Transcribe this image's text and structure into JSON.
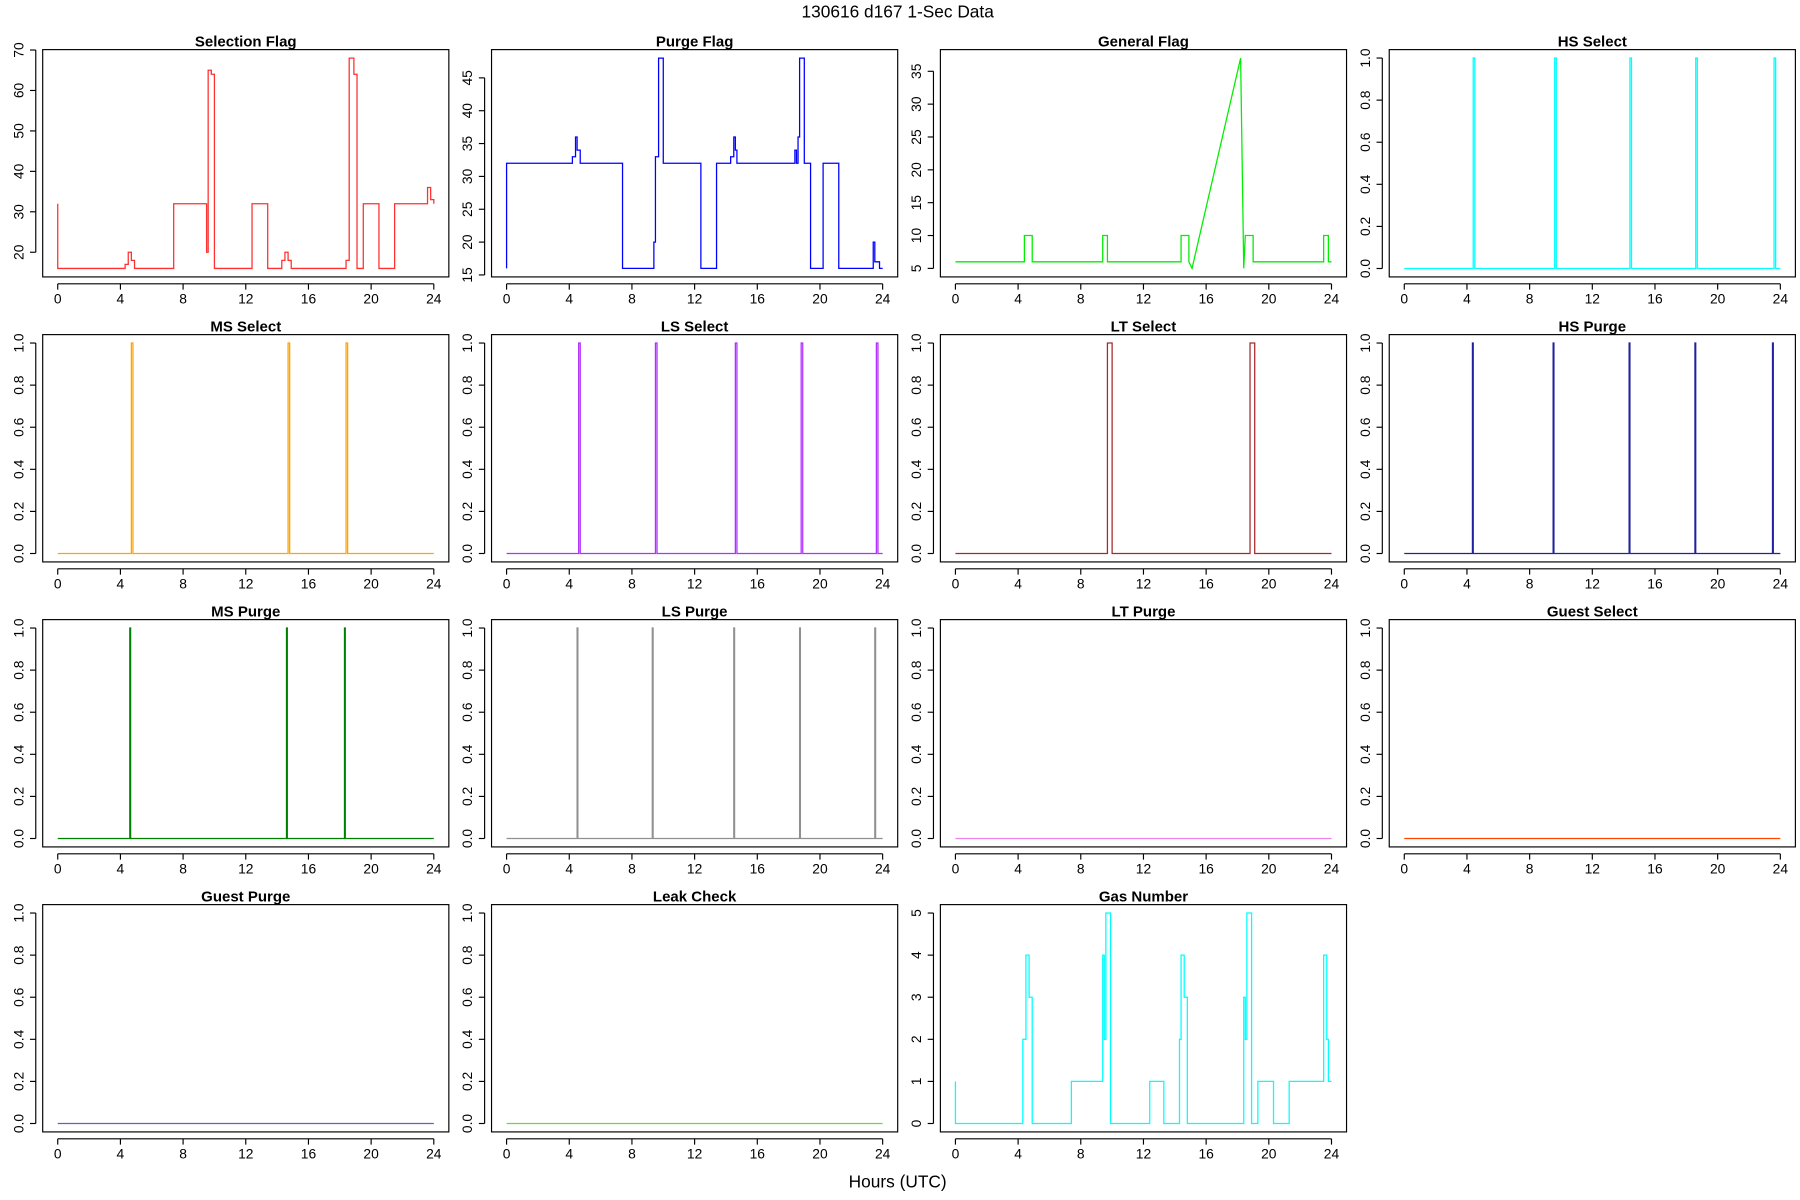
{
  "title": "130616   d167   1-Sec Data",
  "x_label": "Hours (UTC)",
  "chart_data": [
    {
      "type": "line",
      "title": "Selection Flag",
      "color": "#ff3030",
      "xlim": [
        -0.96,
        24.96
      ],
      "xticks": [
        0,
        4,
        8,
        12,
        16,
        20,
        24
      ],
      "ylim": [
        13.9,
        70.1
      ],
      "yticks": [
        20,
        30,
        40,
        50,
        60,
        70
      ],
      "x": [
        0,
        0,
        4.3,
        4.3,
        4.5,
        4.5,
        4.7,
        4.7,
        4.9,
        4.9,
        7.4,
        7.4,
        9.5,
        9.5,
        9.6,
        9.6,
        9.8,
        9.8,
        10,
        10,
        12.4,
        12.4,
        13.4,
        13.4,
        14.3,
        14.3,
        14.5,
        14.5,
        14.7,
        14.7,
        14.9,
        14.9,
        18.4,
        18.4,
        18.6,
        18.6,
        18.9,
        18.9,
        19.1,
        19.1,
        19.5,
        19.5,
        20.5,
        20.5,
        21.5,
        21.5,
        23.6,
        23.6,
        23.8,
        23.8,
        24,
        24
      ],
      "values": [
        32,
        16,
        16,
        17,
        17,
        20,
        20,
        18,
        18,
        16,
        16,
        32,
        32,
        20,
        20,
        65,
        65,
        64,
        64,
        16,
        16,
        32,
        32,
        16,
        16,
        18,
        18,
        20,
        20,
        18,
        18,
        16,
        16,
        18,
        18,
        68,
        68,
        64,
        64,
        16,
        16,
        32,
        32,
        16,
        16,
        32,
        32,
        36,
        36,
        33,
        33,
        32
      ]
    },
    {
      "type": "line",
      "title": "Purge Flag",
      "color": "#0000ff",
      "xlim": [
        -0.96,
        24.96
      ],
      "xticks": [
        0,
        4,
        8,
        12,
        16,
        20,
        24
      ],
      "ylim": [
        14.7,
        49.3
      ],
      "yticks": [
        15,
        20,
        25,
        30,
        35,
        40,
        45
      ],
      "x": [
        0,
        0,
        4.2,
        4.2,
        4.4,
        4.4,
        4.5,
        4.5,
        4.7,
        4.7,
        7.4,
        7.4,
        9.4,
        9.4,
        9.5,
        9.5,
        9.7,
        9.7,
        10,
        10,
        12.4,
        12.4,
        13.4,
        13.4,
        14.3,
        14.3,
        14.5,
        14.5,
        14.6,
        14.6,
        14.7,
        14.7,
        18.4,
        18.4,
        18.5,
        18.5,
        18.6,
        18.6,
        18.7,
        18.7,
        19,
        19,
        19.4,
        19.4,
        20.2,
        20.2,
        21.2,
        21.2,
        23.4,
        23.4,
        23.5,
        23.5,
        23.8,
        23.8,
        24
      ],
      "values": [
        16,
        32,
        32,
        33,
        33,
        36,
        36,
        34,
        34,
        32,
        32,
        16,
        16,
        20,
        20,
        33,
        33,
        48,
        48,
        32,
        32,
        16,
        16,
        32,
        32,
        33,
        33,
        36,
        36,
        34,
        34,
        32,
        32,
        34,
        34,
        32,
        32,
        36,
        36,
        48,
        48,
        32,
        32,
        16,
        16,
        32,
        32,
        16,
        16,
        20,
        20,
        17,
        17,
        16,
        16
      ]
    },
    {
      "type": "line",
      "title": "General Flag",
      "color": "#00ee00",
      "xlim": [
        -0.96,
        24.96
      ],
      "xticks": [
        0,
        4,
        8,
        12,
        16,
        20,
        24
      ],
      "ylim": [
        3.7,
        38.3
      ],
      "yticks": [
        5,
        10,
        15,
        20,
        25,
        30,
        35
      ],
      "x": [
        0,
        4.4,
        4.4,
        4.9,
        4.9,
        9.4,
        9.4,
        9.7,
        9.7,
        14.4,
        14.4,
        14.9,
        14.9,
        15.1,
        18.2,
        18.4,
        18.5,
        19,
        19,
        23.5,
        23.5,
        23.8,
        23.8,
        24
      ],
      "values": [
        6,
        6,
        10,
        10,
        6,
        6,
        10,
        10,
        6,
        6,
        10,
        10,
        6,
        5,
        37,
        5,
        10,
        10,
        6,
        6,
        10,
        10,
        6,
        6
      ]
    },
    {
      "type": "line",
      "title": "HS Select",
      "color": "#00ffff",
      "xlim": [
        -0.96,
        24.96
      ],
      "xticks": [
        0,
        4,
        8,
        12,
        16,
        20,
        24
      ],
      "ylim": [
        -0.04,
        1.04
      ],
      "yticks": [
        {
          "value": 0,
          "label": "0.0"
        },
        {
          "value": 0.2,
          "label": "0.2"
        },
        {
          "value": 0.4,
          "label": "0.4"
        },
        {
          "value": 0.6,
          "label": "0.6"
        },
        {
          "value": 0.8,
          "label": "0.8"
        },
        {
          "value": 1,
          "label": "1.0"
        }
      ],
      "x": [
        0,
        4.4,
        4.4,
        4.5,
        4.5,
        9.6,
        9.6,
        9.7,
        9.7,
        14.4,
        14.4,
        14.5,
        14.5,
        18.6,
        18.6,
        18.7,
        18.7,
        23.6,
        23.6,
        23.7,
        23.7,
        24
      ],
      "values": [
        0,
        0,
        1,
        1,
        0,
        0,
        1,
        1,
        0,
        0,
        1,
        1,
        0,
        0,
        1,
        1,
        0,
        0,
        1,
        1,
        0,
        0
      ]
    },
    {
      "type": "line",
      "title": "MS Select",
      "color": "#ffa500",
      "xlim": [
        -0.96,
        24.96
      ],
      "xticks": [
        0,
        4,
        8,
        12,
        16,
        20,
        24
      ],
      "ylim": [
        -0.04,
        1.04
      ],
      "yticks": [
        {
          "value": 0,
          "label": "0.0"
        },
        {
          "value": 0.2,
          "label": "0.2"
        },
        {
          "value": 0.4,
          "label": "0.4"
        },
        {
          "value": 0.6,
          "label": "0.6"
        },
        {
          "value": 0.8,
          "label": "0.8"
        },
        {
          "value": 1,
          "label": "1.0"
        }
      ],
      "x": [
        0,
        4.7,
        4.7,
        4.8,
        4.8,
        14.7,
        14.7,
        14.8,
        14.8,
        18.4,
        18.4,
        18.5,
        18.5,
        24
      ],
      "values": [
        0,
        0,
        1,
        1,
        0,
        0,
        1,
        1,
        0,
        0,
        1,
        1,
        0,
        0
      ]
    },
    {
      "type": "line",
      "title": "LS Select",
      "color": "#b030ff",
      "xlim": [
        -0.96,
        24.96
      ],
      "xticks": [
        0,
        4,
        8,
        12,
        16,
        20,
        24
      ],
      "ylim": [
        -0.04,
        1.04
      ],
      "yticks": [
        {
          "value": 0,
          "label": "0.0"
        },
        {
          "value": 0.2,
          "label": "0.2"
        },
        {
          "value": 0.4,
          "label": "0.4"
        },
        {
          "value": 0.6,
          "label": "0.6"
        },
        {
          "value": 0.8,
          "label": "0.8"
        },
        {
          "value": 1,
          "label": "1.0"
        }
      ],
      "x": [
        0,
        4.6,
        4.6,
        4.7,
        4.7,
        9.5,
        9.5,
        9.6,
        9.6,
        14.6,
        14.6,
        14.7,
        14.7,
        18.8,
        18.8,
        18.9,
        18.9,
        23.6,
        23.6,
        23.7,
        23.7,
        24
      ],
      "values": [
        0,
        0,
        1,
        1,
        0,
        0,
        1,
        1,
        0,
        0,
        1,
        1,
        0,
        0,
        1,
        1,
        0,
        0,
        1,
        1,
        0,
        0
      ]
    },
    {
      "type": "line",
      "title": "LT Select",
      "color": "#a52a2a",
      "xlim": [
        -0.96,
        24.96
      ],
      "xticks": [
        0,
        4,
        8,
        12,
        16,
        20,
        24
      ],
      "ylim": [
        -0.04,
        1.04
      ],
      "yticks": [
        {
          "value": 0,
          "label": "0.0"
        },
        {
          "value": 0.2,
          "label": "0.2"
        },
        {
          "value": 0.4,
          "label": "0.4"
        },
        {
          "value": 0.6,
          "label": "0.6"
        },
        {
          "value": 0.8,
          "label": "0.8"
        },
        {
          "value": 1,
          "label": "1.0"
        }
      ],
      "x": [
        0,
        9.7,
        9.7,
        10,
        10,
        18.8,
        18.8,
        19.1,
        19.1,
        24
      ],
      "values": [
        0,
        0,
        1,
        1,
        0,
        0,
        1,
        1,
        0,
        0
      ]
    },
    {
      "type": "line",
      "title": "HS Purge",
      "color": "#2020a0",
      "xlim": [
        -0.96,
        24.96
      ],
      "xticks": [
        0,
        4,
        8,
        12,
        16,
        20,
        24
      ],
      "ylim": [
        -0.04,
        1.04
      ],
      "yticks": [
        {
          "value": 0,
          "label": "0.0"
        },
        {
          "value": 0.2,
          "label": "0.2"
        },
        {
          "value": 0.4,
          "label": "0.4"
        },
        {
          "value": 0.6,
          "label": "0.6"
        },
        {
          "value": 0.8,
          "label": "0.8"
        },
        {
          "value": 1,
          "label": "1.0"
        }
      ],
      "x": [
        0,
        4.35,
        4.35,
        4.4,
        4.4,
        9.5,
        9.5,
        9.55,
        9.55,
        14.35,
        14.35,
        14.4,
        14.4,
        18.55,
        18.55,
        18.6,
        18.6,
        23.5,
        23.5,
        23.55,
        23.55,
        24
      ],
      "values": [
        0,
        0,
        1,
        1,
        0,
        0,
        1,
        1,
        0,
        0,
        1,
        1,
        0,
        0,
        1,
        1,
        0,
        0,
        1,
        1,
        0,
        0
      ]
    },
    {
      "type": "line",
      "title": "MS Purge",
      "color": "#008000",
      "xlim": [
        -0.96,
        24.96
      ],
      "xticks": [
        0,
        4,
        8,
        12,
        16,
        20,
        24
      ],
      "ylim": [
        -0.04,
        1.04
      ],
      "yticks": [
        {
          "value": 0,
          "label": "0.0"
        },
        {
          "value": 0.2,
          "label": "0.2"
        },
        {
          "value": 0.4,
          "label": "0.4"
        },
        {
          "value": 0.6,
          "label": "0.6"
        },
        {
          "value": 0.8,
          "label": "0.8"
        },
        {
          "value": 1,
          "label": "1.0"
        }
      ],
      "x": [
        0,
        4.6,
        4.6,
        4.65,
        4.65,
        14.6,
        14.6,
        14.65,
        14.65,
        18.3,
        18.3,
        18.35,
        18.35,
        24
      ],
      "values": [
        0,
        0,
        1,
        1,
        0,
        0,
        1,
        1,
        0,
        0,
        1,
        1,
        0,
        0
      ]
    },
    {
      "type": "line",
      "title": "LS Purge",
      "color": "#909090",
      "xlim": [
        -0.96,
        24.96
      ],
      "xticks": [
        0,
        4,
        8,
        12,
        16,
        20,
        24
      ],
      "ylim": [
        -0.04,
        1.04
      ],
      "yticks": [
        {
          "value": 0,
          "label": "0.0"
        },
        {
          "value": 0.2,
          "label": "0.2"
        },
        {
          "value": 0.4,
          "label": "0.4"
        },
        {
          "value": 0.6,
          "label": "0.6"
        },
        {
          "value": 0.8,
          "label": "0.8"
        },
        {
          "value": 1,
          "label": "1.0"
        }
      ],
      "x": [
        0,
        4.5,
        4.5,
        4.55,
        4.55,
        9.3,
        9.3,
        9.35,
        9.35,
        14.5,
        14.5,
        14.55,
        14.55,
        18.7,
        18.7,
        18.75,
        18.75,
        23.5,
        23.5,
        23.55,
        23.55,
        24
      ],
      "values": [
        0,
        0,
        1,
        1,
        0,
        0,
        1,
        1,
        0,
        0,
        1,
        1,
        0,
        0,
        1,
        1,
        0,
        0,
        1,
        1,
        0,
        0
      ]
    },
    {
      "type": "line",
      "title": "LT Purge",
      "color": "#ee82ee",
      "xlim": [
        -0.96,
        24.96
      ],
      "xticks": [
        0,
        4,
        8,
        12,
        16,
        20,
        24
      ],
      "ylim": [
        -0.04,
        1.04
      ],
      "yticks": [
        {
          "value": 0,
          "label": "0.0"
        },
        {
          "value": 0.2,
          "label": "0.2"
        },
        {
          "value": 0.4,
          "label": "0.4"
        },
        {
          "value": 0.6,
          "label": "0.6"
        },
        {
          "value": 0.8,
          "label": "0.8"
        },
        {
          "value": 1,
          "label": "1.0"
        }
      ],
      "x": [
        0,
        24
      ],
      "values": [
        0,
        0
      ]
    },
    {
      "type": "line",
      "title": "Guest Select",
      "color": "#ff4500",
      "xlim": [
        -0.96,
        24.96
      ],
      "xticks": [
        0,
        4,
        8,
        12,
        16,
        20,
        24
      ],
      "ylim": [
        -0.04,
        1.04
      ],
      "yticks": [
        {
          "value": 0,
          "label": "0.0"
        },
        {
          "value": 0.2,
          "label": "0.2"
        },
        {
          "value": 0.4,
          "label": "0.4"
        },
        {
          "value": 0.6,
          "label": "0.6"
        },
        {
          "value": 0.8,
          "label": "0.8"
        },
        {
          "value": 1,
          "label": "1.0"
        }
      ],
      "x": [
        0,
        24
      ],
      "values": [
        0,
        0
      ]
    },
    {
      "type": "line",
      "title": "Guest Purge",
      "color": "#6a5acd",
      "xlim": [
        -0.96,
        24.96
      ],
      "xticks": [
        0,
        4,
        8,
        12,
        16,
        20,
        24
      ],
      "ylim": [
        -0.04,
        1.04
      ],
      "yticks": [
        {
          "value": 0,
          "label": "0.0"
        },
        {
          "value": 0.2,
          "label": "0.2"
        },
        {
          "value": 0.4,
          "label": "0.4"
        },
        {
          "value": 0.6,
          "label": "0.6"
        },
        {
          "value": 0.8,
          "label": "0.8"
        },
        {
          "value": 1,
          "label": "1.0"
        }
      ],
      "x": [
        0,
        24
      ],
      "values": [
        0,
        0
      ]
    },
    {
      "type": "line",
      "title": "Leak Check",
      "color": "#66dd33",
      "xlim": [
        -0.96,
        24.96
      ],
      "xticks": [
        0,
        4,
        8,
        12,
        16,
        20,
        24
      ],
      "ylim": [
        -0.04,
        1.04
      ],
      "yticks": [
        {
          "value": 0,
          "label": "0.0"
        },
        {
          "value": 0.2,
          "label": "0.2"
        },
        {
          "value": 0.4,
          "label": "0.4"
        },
        {
          "value": 0.6,
          "label": "0.6"
        },
        {
          "value": 0.8,
          "label": "0.8"
        },
        {
          "value": 1,
          "label": "1.0"
        }
      ],
      "x": [
        0,
        24
      ],
      "values": [
        0,
        0
      ]
    },
    {
      "type": "line",
      "title": "Gas Number",
      "color": "#00ffff",
      "xlim": [
        -0.96,
        24.96
      ],
      "xticks": [
        0,
        4,
        8,
        12,
        16,
        20,
        24
      ],
      "ylim": [
        -0.2,
        5.2
      ],
      "yticks": [
        0,
        1,
        2,
        3,
        4,
        5
      ],
      "x": [
        0,
        0,
        4.3,
        4.3,
        4.5,
        4.5,
        4.7,
        4.7,
        4.9,
        4.9,
        7.4,
        7.4,
        9.4,
        9.4,
        9.5,
        9.5,
        9.6,
        9.6,
        9.9,
        9.9,
        12.4,
        12.4,
        13.3,
        13.3,
        14.3,
        14.3,
        14.4,
        14.4,
        14.6,
        14.6,
        14.8,
        14.8,
        18.4,
        18.4,
        18.5,
        18.5,
        18.6,
        18.6,
        18.9,
        18.9,
        19.3,
        19.3,
        20.3,
        20.3,
        21.3,
        21.3,
        23.5,
        23.5,
        23.7,
        23.7,
        23.8,
        23.8,
        24
      ],
      "values": [
        1,
        0,
        0,
        2,
        2,
        4,
        4,
        3,
        3,
        0,
        0,
        1,
        1,
        4,
        4,
        2,
        2,
        5,
        5,
        0,
        0,
        1,
        1,
        0,
        0,
        2,
        2,
        4,
        4,
        3,
        3,
        0,
        0,
        3,
        3,
        2,
        2,
        5,
        5,
        0,
        0,
        1,
        1,
        0,
        0,
        1,
        1,
        4,
        4,
        2,
        2,
        1,
        1
      ]
    }
  ]
}
